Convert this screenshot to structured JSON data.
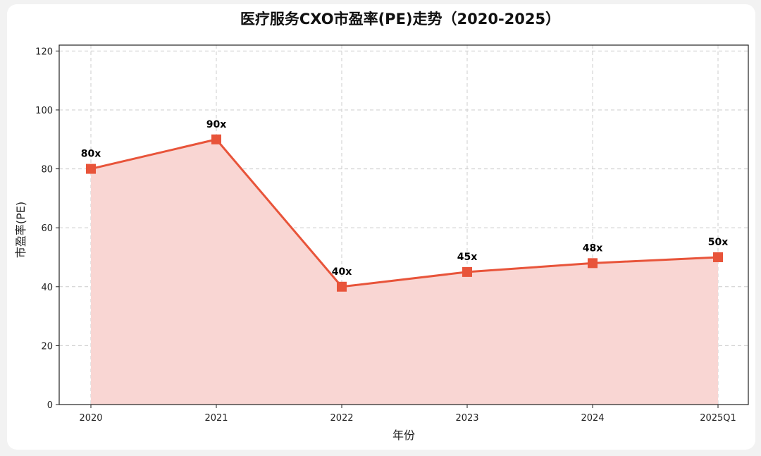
{
  "chart_data": {
    "type": "area",
    "title": "医疗服务CXO市盈率(PE)走势（2020-2025）",
    "xlabel": "年份",
    "ylabel": "市盈率(PE)",
    "categories": [
      "2020",
      "2021",
      "2022",
      "2023",
      "2024",
      "2025Q1"
    ],
    "series": [
      {
        "values": [
          80,
          90,
          40,
          45,
          48,
          50
        ],
        "labels": [
          "80x",
          "90x",
          "40x",
          "45x",
          "48x",
          "50x"
        ]
      }
    ],
    "ylim": [
      0,
      122
    ],
    "yticks": [
      0,
      20,
      40,
      60,
      80,
      100,
      120
    ],
    "grid": true,
    "marker": "square",
    "colors": {
      "line": "#e8543a",
      "fill": "#f9d6d3",
      "grid": "#cccccc"
    }
  }
}
